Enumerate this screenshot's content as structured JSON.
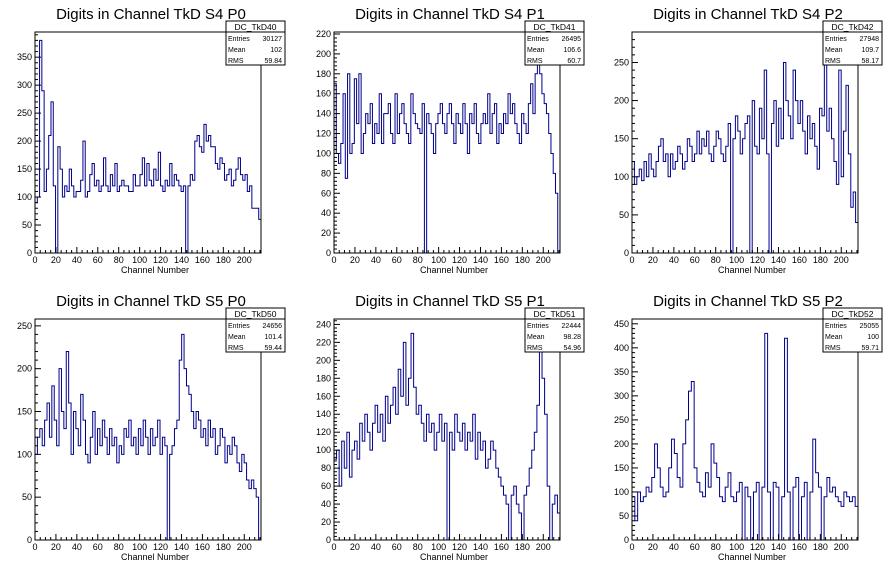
{
  "chart_data": [
    {
      "type": "histogram",
      "title": "Digits in Channel TkD S4 P0",
      "xlabel": "Channel Number",
      "ylabel": "",
      "xlim": [
        0,
        216
      ],
      "ylim": [
        0,
        395
      ],
      "xticks": [
        0,
        20,
        40,
        60,
        80,
        100,
        120,
        140,
        160,
        180,
        200
      ],
      "yticks": [
        50,
        100,
        150,
        200,
        250,
        300,
        350
      ],
      "stats": {
        "name": "DC_TkD40",
        "entries": "30127",
        "mean": "102",
        "rms": "59.84"
      },
      "line_color": "#00008b",
      "values": [
        90,
        100,
        380,
        290,
        110,
        150,
        210,
        270,
        120,
        0,
        190,
        150,
        100,
        120,
        110,
        150,
        120,
        100,
        110,
        110,
        130,
        200,
        100,
        110,
        140,
        160,
        120,
        130,
        110,
        120,
        170,
        120,
        110,
        140,
        120,
        160,
        110,
        120,
        130,
        120,
        120,
        110,
        110,
        140,
        120,
        120,
        140,
        170,
        120,
        160,
        130,
        120,
        150,
        130,
        180,
        120,
        110,
        130,
        120,
        160,
        120,
        140,
        130,
        120,
        110,
        120,
        0,
        120,
        140,
        130,
        200,
        210,
        190,
        180,
        230,
        200,
        210,
        190,
        190,
        160,
        150,
        170,
        160,
        130,
        140,
        150,
        120,
        130,
        150,
        170,
        140,
        130,
        140,
        110,
        120,
        80,
        80,
        80,
        60
      ]
    },
    {
      "type": "histogram",
      "title": "Digits in Channel TkD S4 P1",
      "xlabel": "Channel Number",
      "ylabel": "",
      "xlim": [
        0,
        216
      ],
      "ylim": [
        0,
        222
      ],
      "xticks": [
        0,
        20,
        40,
        60,
        80,
        100,
        120,
        140,
        160,
        180,
        200
      ],
      "yticks": [
        20,
        40,
        60,
        80,
        100,
        120,
        140,
        160,
        180,
        200,
        220
      ],
      "stats": {
        "name": "DC_TkD41",
        "entries": "26495",
        "mean": "106.6",
        "rms": "60.7"
      },
      "line_color": "#00008b",
      "values": [
        170,
        100,
        90,
        110,
        160,
        75,
        180,
        100,
        110,
        175,
        130,
        180,
        100,
        120,
        140,
        130,
        150,
        110,
        130,
        120,
        160,
        110,
        140,
        140,
        150,
        120,
        110,
        160,
        120,
        140,
        150,
        130,
        120,
        110,
        160,
        140,
        130,
        125,
        120,
        150,
        0,
        140,
        130,
        120,
        100,
        130,
        140,
        150,
        130,
        120,
        140,
        150,
        130,
        110,
        140,
        130,
        120,
        150,
        130,
        100,
        140,
        130,
        150,
        120,
        110,
        130,
        140,
        130,
        160,
        120,
        140,
        150,
        110,
        130,
        120,
        140,
        130,
        160,
        140,
        150,
        130,
        120,
        110,
        140,
        130,
        120,
        150,
        170,
        140,
        180,
        210,
        180,
        160,
        150,
        140,
        120,
        100,
        80,
        60,
        0
      ]
    },
    {
      "type": "histogram",
      "title": "Digits in Channel TkD S4 P2",
      "xlabel": "Channel Number",
      "ylabel": "",
      "xlim": [
        0,
        216
      ],
      "ylim": [
        0,
        290
      ],
      "xticks": [
        0,
        20,
        40,
        60,
        80,
        100,
        120,
        140,
        160,
        180,
        200
      ],
      "yticks": [
        50,
        100,
        150,
        200,
        250
      ],
      "stats": {
        "name": "DC_TkD42",
        "entries": "27948",
        "mean": "109.7",
        "rms": "58.17"
      },
      "line_color": "#00008b",
      "values": [
        120,
        90,
        100,
        110,
        95,
        120,
        100,
        130,
        110,
        100,
        120,
        140,
        150,
        120,
        130,
        100,
        130,
        110,
        120,
        140,
        130,
        110,
        120,
        150,
        140,
        120,
        130,
        160,
        130,
        150,
        140,
        160,
        130,
        120,
        140,
        160,
        150,
        130,
        120,
        140,
        170,
        0,
        150,
        180,
        160,
        130,
        150,
        170,
        180,
        0,
        200,
        140,
        130,
        190,
        150,
        240,
        130,
        0,
        170,
        200,
        140,
        190,
        150,
        250,
        200,
        180,
        150,
        240,
        200,
        170,
        200,
        160,
        130,
        180,
        150,
        170,
        140,
        110,
        190,
        180,
        270,
        160,
        190,
        150,
        120,
        90,
        240,
        100,
        160,
        220,
        130,
        60,
        80,
        40
      ]
    },
    {
      "type": "histogram",
      "title": "Digits in Channel TkD S5 P0",
      "xlabel": "Channel Number",
      "ylabel": "",
      "xlim": [
        0,
        216
      ],
      "ylim": [
        0,
        258
      ],
      "xticks": [
        0,
        20,
        40,
        60,
        80,
        100,
        120,
        140,
        160,
        180,
        200
      ],
      "yticks": [
        50,
        100,
        150,
        200,
        250
      ],
      "stats": {
        "name": "DC_TkD50",
        "entries": "24656",
        "mean": "101.4",
        "rms": "59.44"
      },
      "line_color": "#00008b",
      "values": [
        100,
        120,
        130,
        110,
        140,
        160,
        120,
        180,
        140,
        110,
        200,
        150,
        130,
        220,
        160,
        100,
        150,
        130,
        110,
        170,
        140,
        100,
        90,
        120,
        150,
        100,
        130,
        110,
        140,
        120,
        100,
        130,
        110,
        120,
        90,
        110,
        100,
        130,
        120,
        140,
        110,
        120,
        100,
        130,
        110,
        140,
        120,
        100,
        130,
        110,
        120,
        140,
        100,
        120,
        110,
        0,
        100,
        110,
        130,
        140,
        210,
        240,
        200,
        180,
        170,
        150,
        130,
        150,
        140,
        120,
        130,
        110,
        140,
        120,
        130,
        100,
        110,
        130,
        120,
        90,
        110,
        100,
        120,
        110,
        90,
        80,
        100,
        90,
        70,
        60,
        70,
        60,
        50,
        0
      ]
    },
    {
      "type": "histogram",
      "title": "Digits in Channel TkD S5 P1",
      "xlabel": "Channel Number",
      "ylabel": "",
      "xlim": [
        0,
        216
      ],
      "ylim": [
        0,
        246
      ],
      "xticks": [
        0,
        20,
        40,
        60,
        80,
        100,
        120,
        140,
        160,
        180,
        200
      ],
      "yticks": [
        20,
        40,
        60,
        80,
        100,
        120,
        140,
        160,
        180,
        200,
        220,
        240
      ],
      "stats": {
        "name": "DC_TkD51",
        "entries": "22444",
        "mean": "98.28",
        "rms": "54.96"
      },
      "line_color": "#00008b",
      "values": [
        90,
        100,
        60,
        110,
        80,
        120,
        70,
        100,
        110,
        90,
        130,
        110,
        140,
        120,
        100,
        130,
        150,
        120,
        140,
        110,
        160,
        130,
        150,
        170,
        140,
        190,
        160,
        220,
        150,
        180,
        230,
        170,
        140,
        150,
        130,
        110,
        140,
        120,
        130,
        100,
        120,
        140,
        110,
        130,
        0,
        120,
        100,
        140,
        120,
        110,
        130,
        100,
        120,
        110,
        140,
        90,
        120,
        100,
        110,
        80,
        90,
        110,
        100,
        80,
        70,
        60,
        50,
        40,
        0,
        50,
        60,
        40,
        30,
        0,
        50,
        60,
        80,
        100,
        120,
        150,
        210,
        180,
        140,
        60,
        0,
        40,
        50,
        30
      ]
    },
    {
      "type": "histogram",
      "title": "Digits in Channel TkD S5 P2",
      "xlabel": "Channel Number",
      "ylabel": "",
      "xlim": [
        0,
        216
      ],
      "ylim": [
        0,
        460
      ],
      "xticks": [
        0,
        20,
        40,
        60,
        80,
        100,
        120,
        140,
        160,
        180,
        200
      ],
      "yticks": [
        50,
        100,
        150,
        200,
        250,
        300,
        350,
        400,
        450
      ],
      "stats": {
        "name": "DC_TkD52",
        "entries": "25055",
        "mean": "100",
        "rms": "59.71"
      },
      "line_color": "#00008b",
      "values": [
        90,
        40,
        100,
        80,
        90,
        110,
        100,
        130,
        200,
        150,
        110,
        90,
        100,
        150,
        210,
        180,
        130,
        110,
        200,
        250,
        310,
        330,
        150,
        120,
        100,
        90,
        140,
        110,
        200,
        160,
        130,
        90,
        80,
        110,
        140,
        90,
        80,
        100,
        120,
        0,
        110,
        90,
        0,
        100,
        120,
        0,
        110,
        430,
        100,
        0,
        120,
        110,
        0,
        90,
        420,
        100,
        0,
        110,
        130,
        0,
        90,
        120,
        0,
        100,
        210,
        140,
        110,
        0,
        90,
        130,
        100,
        110,
        90,
        80,
        70,
        100,
        90,
        80,
        90,
        70
      ]
    }
  ]
}
